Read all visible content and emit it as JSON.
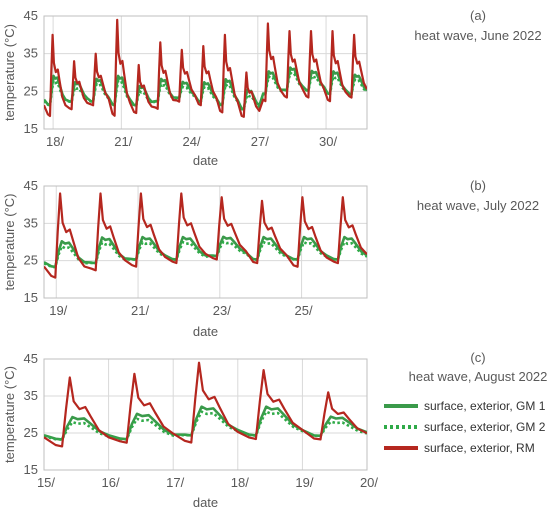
{
  "legend": [
    {
      "label": "surface, exterior, GM 1",
      "color": "#3a9a4a",
      "style": "solid"
    },
    {
      "label": "surface, exterior, GM 2",
      "color": "#2faa48",
      "style": "dotted"
    },
    {
      "label": "surface, exterior, RM",
      "color": "#b5271f",
      "style": "solid"
    }
  ],
  "chart_data": [
    {
      "type": "line",
      "caption_letter": "(a)",
      "caption_text": "heat wave, June 2022",
      "xlabel": "date",
      "ylabel": "temperature (°C)",
      "ylim": [
        15,
        45
      ],
      "yticks": [
        15,
        25,
        35,
        45
      ],
      "xlim": [
        17.6,
        31.8
      ],
      "xticks": [
        18,
        21,
        24,
        27,
        30
      ],
      "xtick_labels": [
        "18/",
        "21/",
        "24/",
        "27/",
        "30/"
      ],
      "days": [
        {
          "rm_max": 40,
          "rm_min": 18,
          "gm_max": 30,
          "gm_min": 21
        },
        {
          "rm_max": 33,
          "rm_min": 20,
          "gm_max": 28,
          "gm_min": 22
        },
        {
          "rm_max": 35,
          "rm_min": 21,
          "gm_max": 29,
          "gm_min": 22
        },
        {
          "rm_max": 44,
          "rm_min": 18,
          "gm_max": 30,
          "gm_min": 21
        },
        {
          "rm_max": 32,
          "rm_min": 19,
          "gm_max": 27,
          "gm_min": 21
        },
        {
          "rm_max": 38,
          "rm_min": 20,
          "gm_max": 29,
          "gm_min": 22
        },
        {
          "rm_max": 36,
          "rm_min": 22,
          "gm_max": 28,
          "gm_min": 23
        },
        {
          "rm_max": 37,
          "rm_min": 21,
          "gm_max": 28,
          "gm_min": 22
        },
        {
          "rm_max": 40,
          "rm_min": 19,
          "gm_max": 29,
          "gm_min": 21
        },
        {
          "rm_max": 30,
          "rm_min": 18,
          "gm_max": 26,
          "gm_min": 20
        },
        {
          "rm_max": 43,
          "rm_min": 22,
          "gm_max": 31,
          "gm_min": 24
        },
        {
          "rm_max": 41,
          "rm_min": 23,
          "gm_max": 32,
          "gm_min": 25
        },
        {
          "rm_max": 41,
          "rm_min": 23,
          "gm_max": 31,
          "gm_min": 25
        },
        {
          "rm_max": 41,
          "rm_min": 22,
          "gm_max": 31,
          "gm_min": 24
        },
        {
          "rm_max": 40,
          "rm_min": 23,
          "gm_max": 30,
          "gm_min": 24
        }
      ]
    },
    {
      "type": "line",
      "caption_letter": "(b)",
      "caption_text": "heat wave, July 2022",
      "xlabel": "date",
      "ylabel": "temperature (°C)",
      "ylim": [
        15,
        45
      ],
      "yticks": [
        15,
        25,
        35,
        45
      ],
      "xlim": [
        18.7,
        26.6
      ],
      "xticks": [
        19,
        21,
        23,
        25
      ],
      "xtick_labels": [
        "19/",
        "21/",
        "23/",
        "25/"
      ],
      "days": [
        {
          "rm_max": 43,
          "rm_min": 20,
          "gm_max": 31,
          "gm_min": 23
        },
        {
          "rm_max": 43,
          "rm_min": 22,
          "gm_max": 32,
          "gm_min": 24
        },
        {
          "rm_max": 43,
          "rm_min": 23,
          "gm_max": 32,
          "gm_min": 25
        },
        {
          "rm_max": 43,
          "rm_min": 24,
          "gm_max": 32,
          "gm_min": 25
        },
        {
          "rm_max": 42,
          "rm_min": 25,
          "gm_max": 32,
          "gm_min": 26
        },
        {
          "rm_max": 41,
          "rm_min": 24,
          "gm_max": 32,
          "gm_min": 25
        },
        {
          "rm_max": 42,
          "rm_min": 23,
          "gm_max": 32,
          "gm_min": 25
        },
        {
          "rm_max": 42,
          "rm_min": 24,
          "gm_max": 32,
          "gm_min": 25
        }
      ]
    },
    {
      "type": "line",
      "caption_letter": "(c)",
      "caption_text": "heat wave, August 2022",
      "xlabel": "date",
      "ylabel": "temperature (°C)",
      "ylim": [
        15,
        45
      ],
      "yticks": [
        15,
        25,
        35,
        45
      ],
      "xlim": [
        15,
        20
      ],
      "xticks": [
        15,
        16,
        17,
        18,
        19,
        20
      ],
      "xtick_labels": [
        "15/",
        "16/",
        "17/",
        "18/",
        "19/",
        "20/"
      ],
      "days": [
        {
          "rm_max": 40,
          "rm_min": 21,
          "gm_max": 30,
          "gm_min": 23
        },
        {
          "rm_max": 41,
          "rm_min": 22,
          "gm_max": 31,
          "gm_min": 23
        },
        {
          "rm_max": 44,
          "rm_min": 22,
          "gm_max": 33,
          "gm_min": 24
        },
        {
          "rm_max": 42,
          "rm_min": 23,
          "gm_max": 33,
          "gm_min": 24
        },
        {
          "rm_max": 36,
          "rm_min": 23,
          "gm_max": 30,
          "gm_min": 24
        }
      ]
    }
  ]
}
